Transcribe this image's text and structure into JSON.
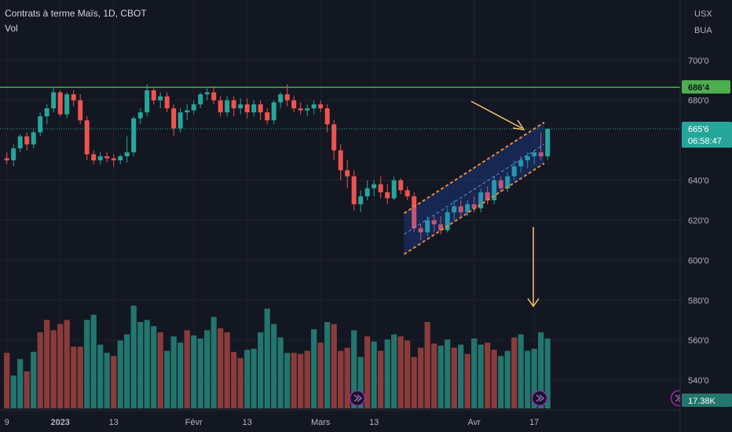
{
  "legend": {
    "title": "Contrats à terme Maïs, 1D, CBOT",
    "volume": "Vol"
  },
  "axis": {
    "currency": "USX",
    "unit": "BUA"
  },
  "chart_data": {
    "type": "candlestick",
    "ylim": [
      531,
      718
    ],
    "y_ticks": [
      "700'0",
      "680'0",
      "640'0",
      "620'0",
      "600'0",
      "580'0",
      "560'0",
      "540'0"
    ],
    "y_tick_values": [
      700,
      680,
      640,
      620,
      600,
      580,
      560,
      540
    ],
    "x_ticks": [
      "9",
      "2023",
      "13",
      "Févr",
      "13",
      "Mars",
      "13",
      "Avr",
      "17"
    ],
    "x_tick_slots": [
      0,
      8,
      16,
      28,
      36,
      47,
      55,
      70,
      79
    ],
    "resistance": {
      "value": 686.5,
      "label": "686'4",
      "color": "#4caf50"
    },
    "last_price": {
      "value": 665.75,
      "label": "665'6",
      "countdown": "06:58:47",
      "color": "#26a69a"
    },
    "volume_label": "17.38K",
    "colors": {
      "up": "#26a69a",
      "down": "#ef5350",
      "vol_up": "#22766e",
      "vol_down": "#8c3b3b",
      "arrow": "#f5c26b",
      "channel": "#e88a3a"
    },
    "candles": [
      [
        651,
        654,
        648,
        650
      ],
      [
        650,
        658,
        647,
        656
      ],
      [
        656,
        663,
        654,
        662
      ],
      [
        662,
        664,
        655,
        658
      ],
      [
        658,
        666,
        656,
        664
      ],
      [
        664,
        674,
        662,
        672
      ],
      [
        672,
        678,
        668,
        676
      ],
      [
        676,
        686,
        674,
        684
      ],
      [
        684,
        685,
        672,
        673
      ],
      [
        673,
        684,
        671,
        683
      ],
      [
        683,
        685,
        677,
        680
      ],
      [
        680,
        683,
        668,
        670
      ],
      [
        670,
        672,
        650,
        653
      ],
      [
        653,
        655,
        648,
        650
      ],
      [
        650,
        654,
        648,
        652
      ],
      [
        652,
        654,
        649,
        651
      ],
      [
        651,
        653,
        647,
        650
      ],
      [
        650,
        653,
        648,
        652
      ],
      [
        652,
        662,
        649,
        654
      ],
      [
        654,
        672,
        652,
        671
      ],
      [
        671,
        676,
        668,
        674
      ],
      [
        674,
        688,
        672,
        685
      ],
      [
        685,
        686,
        678,
        680
      ],
      [
        680,
        684,
        676,
        682
      ],
      [
        682,
        684,
        674,
        676
      ],
      [
        676,
        678,
        662,
        666
      ],
      [
        666,
        676,
        664,
        674
      ],
      [
        674,
        678,
        670,
        675
      ],
      [
        675,
        680,
        673,
        678
      ],
      [
        678,
        684,
        676,
        683
      ],
      [
        683,
        686,
        680,
        684
      ],
      [
        684,
        687,
        678,
        680
      ],
      [
        680,
        682,
        672,
        674
      ],
      [
        674,
        682,
        672,
        680
      ],
      [
        680,
        682,
        672,
        676
      ],
      [
        676,
        681,
        673,
        678
      ],
      [
        678,
        681,
        671,
        674
      ],
      [
        674,
        680,
        672,
        678
      ],
      [
        678,
        680,
        670,
        674
      ],
      [
        674,
        676,
        668,
        670
      ],
      [
        670,
        680,
        668,
        679
      ],
      [
        679,
        684,
        676,
        683
      ],
      [
        683,
        688,
        677,
        680
      ],
      [
        680,
        682,
        674,
        676
      ],
      [
        676,
        679,
        673,
        675
      ],
      [
        675,
        678,
        672,
        676
      ],
      [
        676,
        680,
        673,
        678
      ],
      [
        678,
        680,
        674,
        676
      ],
      [
        676,
        678,
        664,
        668
      ],
      [
        668,
        670,
        650,
        655
      ],
      [
        655,
        658,
        640,
        645
      ],
      [
        645,
        650,
        636,
        642
      ],
      [
        642,
        645,
        625,
        628
      ],
      [
        628,
        635,
        624,
        632
      ],
      [
        632,
        640,
        630,
        636
      ],
      [
        636,
        640,
        632,
        638
      ],
      [
        638,
        642,
        631,
        634
      ],
      [
        634,
        638,
        628,
        631
      ],
      [
        631,
        642,
        630,
        640
      ],
      [
        640,
        641,
        633,
        635
      ],
      [
        635,
        637,
        630,
        632
      ],
      [
        632,
        634,
        614,
        616
      ],
      [
        616,
        618,
        610,
        614
      ],
      [
        614,
        622,
        612,
        620
      ],
      [
        620,
        622,
        614,
        618
      ],
      [
        618,
        622,
        613,
        615
      ],
      [
        615,
        626,
        614,
        624
      ],
      [
        624,
        630,
        620,
        627
      ],
      [
        627,
        630,
        622,
        624
      ],
      [
        624,
        630,
        622,
        628
      ],
      [
        628,
        632,
        624,
        626
      ],
      [
        626,
        636,
        624,
        634
      ],
      [
        634,
        637,
        628,
        630
      ],
      [
        630,
        642,
        628,
        640
      ],
      [
        640,
        642,
        634,
        636
      ],
      [
        636,
        644,
        634,
        642
      ],
      [
        642,
        650,
        640,
        647
      ],
      [
        647,
        652,
        644,
        650
      ],
      [
        650,
        654,
        646,
        652
      ],
      [
        652,
        655,
        648,
        654
      ],
      [
        654,
        664,
        650,
        652
      ],
      [
        652,
        666,
        650,
        665.75
      ]
    ],
    "volumes": [
      [
        0,
        0.54
      ],
      [
        1,
        0.32
      ],
      [
        1,
        0.48
      ],
      [
        0,
        0.36
      ],
      [
        1,
        0.55
      ],
      [
        0,
        0.74
      ],
      [
        0,
        0.86
      ],
      [
        0,
        0.76
      ],
      [
        0,
        0.82
      ],
      [
        0,
        0.86
      ],
      [
        0,
        0.6
      ],
      [
        0,
        0.6
      ],
      [
        1,
        0.86
      ],
      [
        1,
        0.91
      ],
      [
        1,
        0.62
      ],
      [
        1,
        0.54
      ],
      [
        0,
        0.51
      ],
      [
        1,
        0.66
      ],
      [
        1,
        0.72
      ],
      [
        1,
        1.0
      ],
      [
        1,
        0.84
      ],
      [
        1,
        0.86
      ],
      [
        1,
        0.8
      ],
      [
        0,
        0.74
      ],
      [
        1,
        0.56
      ],
      [
        1,
        0.7
      ],
      [
        1,
        0.64
      ],
      [
        0,
        0.76
      ],
      [
        1,
        0.71
      ],
      [
        1,
        0.68
      ],
      [
        1,
        0.76
      ],
      [
        1,
        0.89
      ],
      [
        0,
        0.78
      ],
      [
        0,
        0.74
      ],
      [
        0,
        0.55
      ],
      [
        0,
        0.49
      ],
      [
        1,
        0.57
      ],
      [
        1,
        0.58
      ],
      [
        1,
        0.74
      ],
      [
        1,
        0.97
      ],
      [
        1,
        0.82
      ],
      [
        1,
        0.69
      ],
      [
        1,
        0.54
      ],
      [
        0,
        0.54
      ],
      [
        0,
        0.53
      ],
      [
        0,
        0.56
      ],
      [
        1,
        0.77
      ],
      [
        0,
        0.64
      ],
      [
        1,
        0.84
      ],
      [
        0,
        0.82
      ],
      [
        0,
        0.56
      ],
      [
        0,
        0.59
      ],
      [
        1,
        0.76
      ],
      [
        1,
        0.5
      ],
      [
        0,
        0.7
      ],
      [
        1,
        0.65
      ],
      [
        0,
        0.56
      ],
      [
        1,
        0.67
      ],
      [
        1,
        0.72
      ],
      [
        0,
        0.7
      ],
      [
        0,
        0.66
      ],
      [
        0,
        0.5
      ],
      [
        0,
        0.59
      ],
      [
        0,
        0.84
      ],
      [
        0,
        0.63
      ],
      [
        1,
        0.61
      ],
      [
        1,
        0.67
      ],
      [
        0,
        0.59
      ],
      [
        1,
        0.62
      ],
      [
        0,
        0.53
      ],
      [
        1,
        0.68
      ],
      [
        1,
        0.62
      ],
      [
        0,
        0.64
      ],
      [
        0,
        0.57
      ],
      [
        1,
        0.51
      ],
      [
        1,
        0.56
      ],
      [
        0,
        0.69
      ],
      [
        1,
        0.72
      ],
      [
        1,
        0.56
      ],
      [
        1,
        0.58
      ],
      [
        1,
        0.74
      ],
      [
        1,
        0.68
      ]
    ]
  }
}
